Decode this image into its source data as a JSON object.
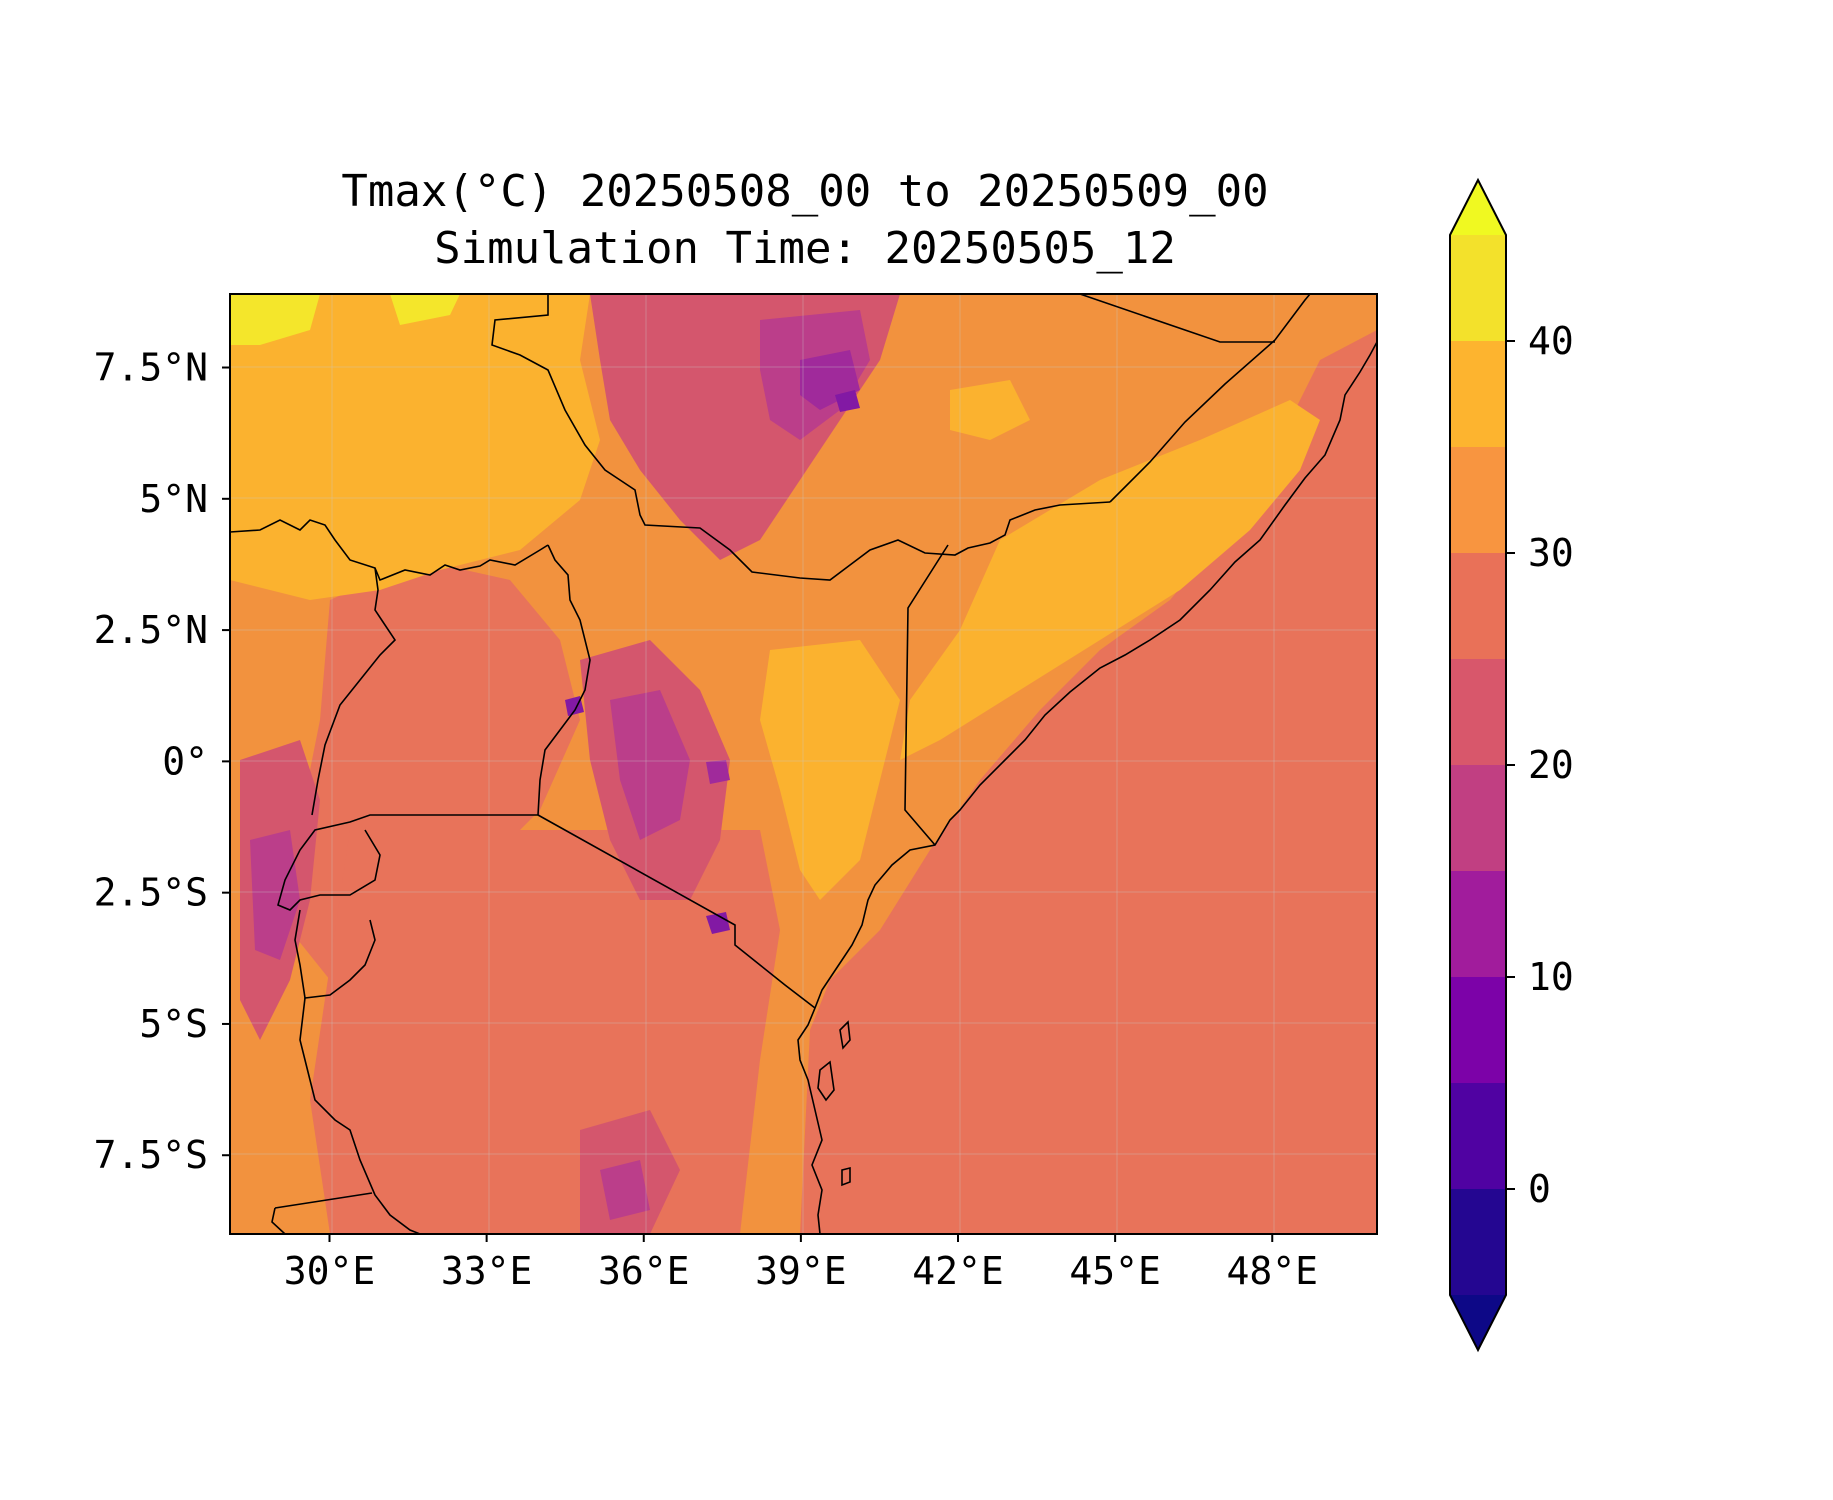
{
  "figure": {
    "title_line1": "Tmax(°C) 20250508_00 to 20250509_00",
    "title_line2": "Simulation Time: 20250505_12"
  },
  "map": {
    "region": "East Africa",
    "lon_range": [
      28.1,
      50.0
    ],
    "lat_range": [
      -9.0,
      8.9
    ],
    "lon_ticks": [
      "30°E",
      "33°E",
      "36°E",
      "39°E",
      "42°E",
      "45°E",
      "48°E"
    ],
    "lat_ticks": [
      "7.5°N",
      "5°N",
      "2.5°N",
      "0°",
      "2.5°S",
      "5°S",
      "7.5°S"
    ],
    "gridlines": true,
    "background_color": "#e8735a",
    "field_colors": {
      "fill_25_30": "#e8735a",
      "fill_30_35": "#f2923e",
      "fill_35_40": "#fbb22f",
      "fill_40_45": "#f4e62b",
      "fill_20_25": "#d4566d",
      "fill_15_20": "#bb3e8a",
      "fill_10_15": "#a02a9b",
      "fill_5_10": "#8219a4"
    }
  },
  "colorbar": {
    "variable": "Tmax",
    "unit": "°C",
    "levels": [
      -5,
      0,
      5,
      10,
      15,
      20,
      25,
      30,
      35,
      40,
      45
    ],
    "tick_values": [
      0,
      10,
      20,
      30,
      40
    ],
    "tick_labels": [
      "0",
      "10",
      "20",
      "30",
      "40"
    ],
    "extend": "both",
    "under_color": "#0d0887",
    "over_color": "#f0f921",
    "colors": [
      "#240691",
      "#5002a2",
      "#7c02a8",
      "#a11c9c",
      "#c13f82",
      "#d8576b",
      "#e97158",
      "#f89540",
      "#fdb42f",
      "#f3e12b"
    ]
  }
}
